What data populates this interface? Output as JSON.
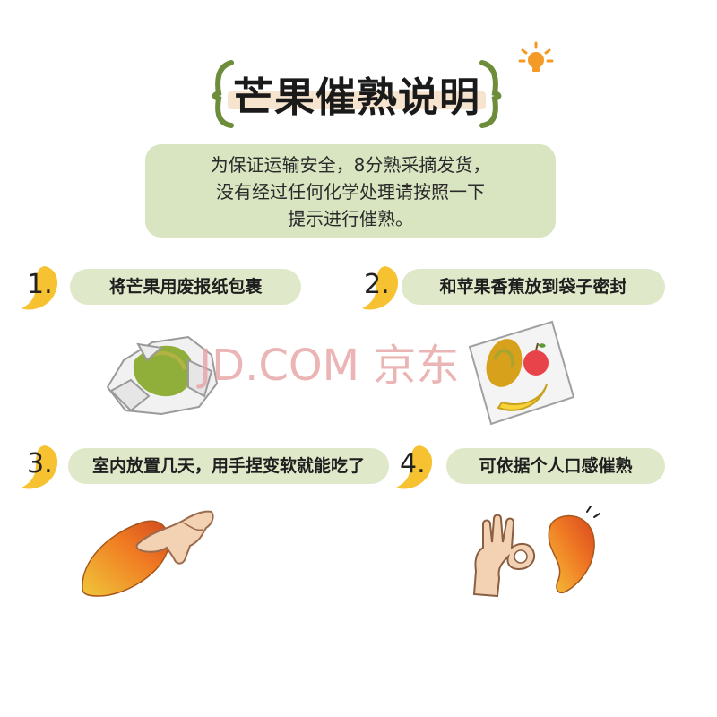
{
  "title": "芒果催熟说明",
  "intro": {
    "line1": "为保证运输安全，8分熟采摘发货，",
    "line2": "没有经过任何化学处理请按照一下",
    "line3": "提示进行催熟。"
  },
  "steps": [
    {
      "number": "1.",
      "label": "将芒果用废报纸包裹"
    },
    {
      "number": "2.",
      "label": "和苹果香蕉放到袋子密封"
    },
    {
      "number": "3.",
      "label": "室内放置几天，用手捏变软就能吃了"
    },
    {
      "number": "4.",
      "label": "可依据个人口感催熟"
    }
  ],
  "watermark": "JD.COM 京东",
  "colors": {
    "pill_green": "#dfe8c9",
    "intro_green": "#d9e5c1",
    "mango_yellow": "#f6c232",
    "bulb_orange": "#f39a27",
    "bracket_green": "#6d8d3b"
  },
  "icons": [
    "lightbulb-icon",
    "mango-leaf-icon",
    "wrapped-mango-illustration",
    "bag-apple-banana-illustration",
    "pressing-mango-illustration",
    "ok-hand-mango-illustration"
  ]
}
